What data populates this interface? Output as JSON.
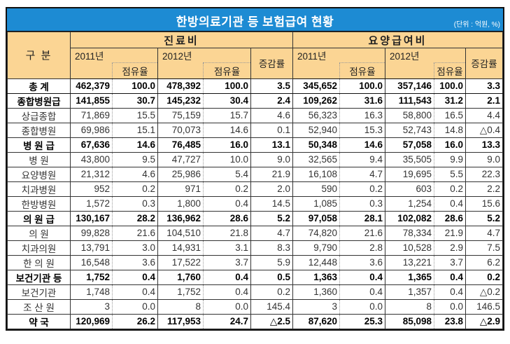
{
  "title": "한방의료기관 등 보험급여 현황",
  "unit": "(단위 : 억원, %)",
  "header": {
    "category": "구 분",
    "group1": "진료비",
    "group2": "요양급여비",
    "year2011": "2011년",
    "year2012": "2012년",
    "share": "점유율",
    "growth": "증감률"
  },
  "rows": [
    {
      "label": "총 계",
      "bold": true,
      "c": [
        "462,379",
        "100.0",
        "478,392",
        "100.0",
        "3.5",
        "345,652",
        "100.0",
        "357,146",
        "100.0",
        "3.3"
      ]
    },
    {
      "label": "종합병원급",
      "bold": true,
      "c": [
        "141,855",
        "30.7",
        "145,232",
        "30.4",
        "2.4",
        "109,262",
        "31.6",
        "111,543",
        "31.2",
        "2.1"
      ]
    },
    {
      "label": "상급종합",
      "bold": false,
      "c": [
        "71,869",
        "15.5",
        "75,159",
        "15.7",
        "4.6",
        "56,323",
        "16.3",
        "58,800",
        "16.5",
        "4.4"
      ]
    },
    {
      "label": "종합병원",
      "bold": false,
      "c": [
        "69,986",
        "15.1",
        "70,073",
        "14.6",
        "0.1",
        "52,940",
        "15.3",
        "52,743",
        "14.8",
        "△0.4"
      ]
    },
    {
      "label": "병 원 급",
      "bold": true,
      "c": [
        "67,636",
        "14.6",
        "76,485",
        "16.0",
        "13.1",
        "50,348",
        "14.6",
        "57,058",
        "16.0",
        "13.3"
      ]
    },
    {
      "label": "병 원",
      "bold": false,
      "c": [
        "43,800",
        "9.5",
        "47,727",
        "10.0",
        "9.0",
        "32,565",
        "9.4",
        "35,505",
        "9.9",
        "9.0"
      ]
    },
    {
      "label": "요양병원",
      "bold": false,
      "c": [
        "21,312",
        "4.6",
        "25,986",
        "5.4",
        "21.9",
        "16,108",
        "4.7",
        "19,695",
        "5.5",
        "22.3"
      ]
    },
    {
      "label": "치과병원",
      "bold": false,
      "c": [
        "952",
        "0.2",
        "971",
        "0.2",
        "2.0",
        "590",
        "0.2",
        "603",
        "0.2",
        "2.2"
      ]
    },
    {
      "label": "한방병원",
      "bold": false,
      "c": [
        "1,572",
        "0.3",
        "1,800",
        "0.4",
        "14.5",
        "1,085",
        "0.3",
        "1,254",
        "0.4",
        "15.6"
      ]
    },
    {
      "label": "의 원 급",
      "bold": true,
      "c": [
        "130,167",
        "28.2",
        "136,962",
        "28.6",
        "5.2",
        "97,058",
        "28.1",
        "102,082",
        "28.6",
        "5.2"
      ]
    },
    {
      "label": "의 원",
      "bold": false,
      "c": [
        "99,828",
        "21.6",
        "104,510",
        "21.8",
        "4.7",
        "74,820",
        "21.6",
        "78,334",
        "21.9",
        "4.7"
      ]
    },
    {
      "label": "치과의원",
      "bold": false,
      "c": [
        "13,791",
        "3.0",
        "14,931",
        "3.1",
        "8.3",
        "9,790",
        "2.8",
        "10,528",
        "2.9",
        "7.5"
      ]
    },
    {
      "label": "한 의 원",
      "bold": false,
      "c": [
        "16,548",
        "3.6",
        "17,522",
        "3.7",
        "5.9",
        "12,448",
        "3.6",
        "13,221",
        "3.7",
        "6.2"
      ]
    },
    {
      "label": "보건기관 등",
      "bold": true,
      "c": [
        "1,752",
        "0.4",
        "1,760",
        "0.4",
        "0.5",
        "1,363",
        "0.4",
        "1,365",
        "0.4",
        "0.2"
      ]
    },
    {
      "label": "보건기관",
      "bold": false,
      "c": [
        "1,748",
        "0.4",
        "1,752",
        "0.4",
        "0.2",
        "1,360",
        "0.4",
        "1,357",
        "0.4",
        "△0.2"
      ]
    },
    {
      "label": "조 산 원",
      "bold": false,
      "c": [
        "3",
        "0.0",
        "8",
        "0.0",
        "145.4",
        "3",
        "0.0",
        "8",
        "0.0",
        "146.5"
      ]
    },
    {
      "label": "약 국",
      "bold": true,
      "c": [
        "120,969",
        "26.2",
        "117,953",
        "24.7",
        "△2.5",
        "87,620",
        "25.3",
        "85,098",
        "23.8",
        "△2.9"
      ]
    }
  ]
}
